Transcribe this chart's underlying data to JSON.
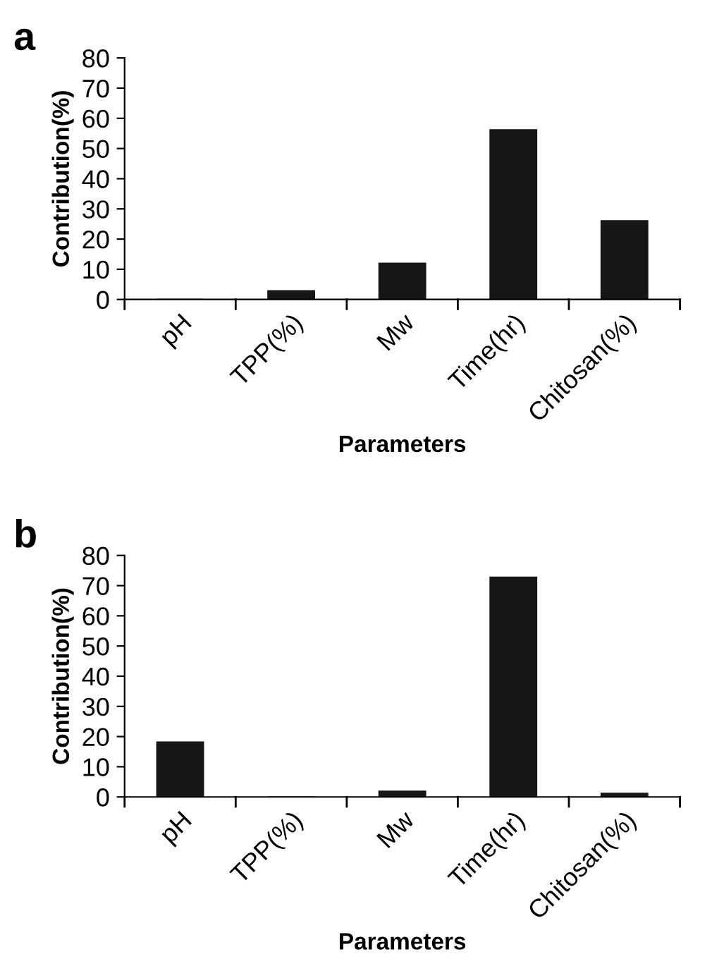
{
  "chart_data": [
    {
      "type": "bar",
      "title": "a",
      "categories": [
        "pH",
        "TPP(%)",
        "Mw",
        "Time(hr)",
        "Chitosan(%)"
      ],
      "values": [
        0,
        2.9,
        12.0,
        56.2,
        26.1
      ],
      "color": "#161616",
      "xlabel": "Parameters",
      "ylabel": "Contribution(%)",
      "ylim": [
        0,
        80
      ],
      "yticks": [
        0,
        10,
        20,
        30,
        40,
        50,
        60,
        70,
        80
      ],
      "grid": false
    },
    {
      "type": "bar",
      "title": "b",
      "categories": [
        "pH",
        "TPP(%)",
        "Mw",
        "Time(hr)",
        "Chitosan(%)"
      ],
      "values": [
        18.2,
        0,
        1.9,
        72.8,
        1.2
      ],
      "color": "#161616",
      "xlabel": "Parameters",
      "ylabel": "Contribution(%)",
      "ylim": [
        0,
        80
      ],
      "yticks": [
        0,
        10,
        20,
        30,
        40,
        50,
        60,
        70,
        80
      ],
      "grid": false
    }
  ]
}
